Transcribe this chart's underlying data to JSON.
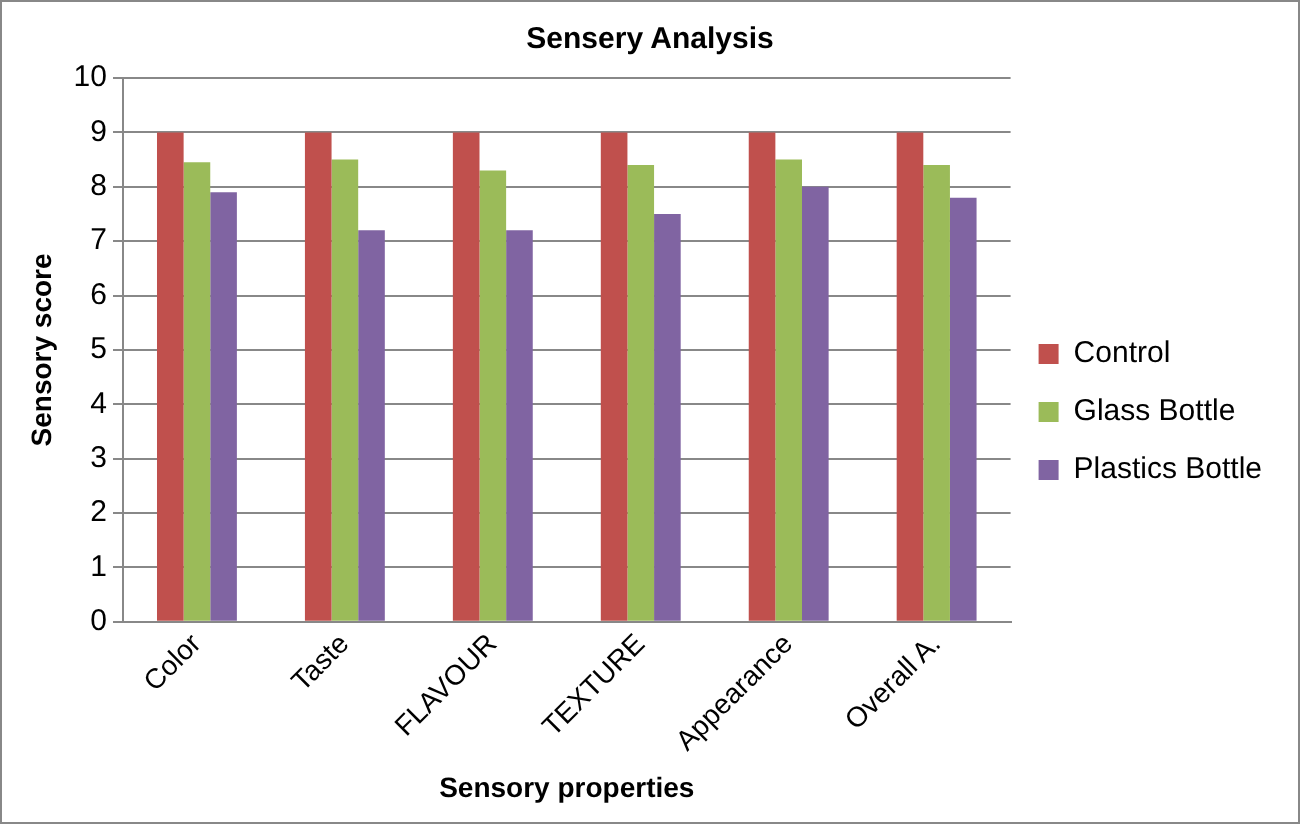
{
  "chart_data": {
    "type": "bar",
    "title": "Sensery Analysis",
    "xlabel": "Sensory properties",
    "ylabel": "Sensory score",
    "categories": [
      "Color",
      "Taste",
      "FLAVOUR",
      "TEXTURE",
      "Appearance",
      "Overall A."
    ],
    "series": [
      {
        "name": "Control",
        "color": "#c0504d",
        "values": [
          9,
          9,
          9,
          9,
          9,
          9
        ]
      },
      {
        "name": "Glass Bottle",
        "color": "#9bbb59",
        "values": [
          8.45,
          8.5,
          8.3,
          8.4,
          8.5,
          8.4
        ]
      },
      {
        "name": "Plastics Bottle",
        "color": "#8064a2",
        "values": [
          7.9,
          7.2,
          7.2,
          7.5,
          8.0,
          7.8
        ]
      }
    ],
    "ylim": [
      0,
      10
    ],
    "yticks": [
      0,
      1,
      2,
      3,
      4,
      5,
      6,
      7,
      8,
      9,
      10
    ],
    "grid": "y",
    "legend": "right"
  }
}
